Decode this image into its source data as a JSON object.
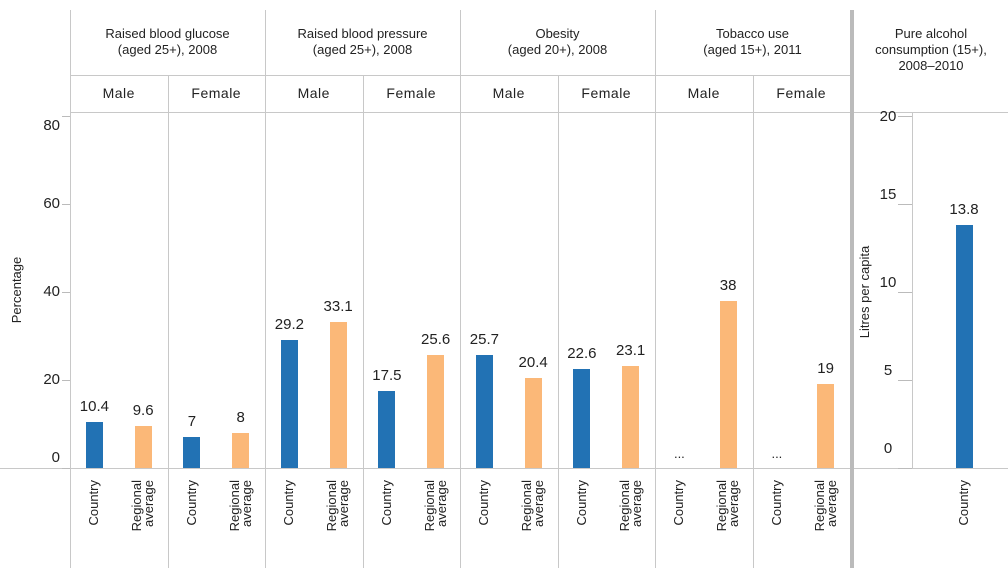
{
  "chart_data": [
    {
      "type": "grouped-bar",
      "ylabel": "Percentage",
      "ylim": [
        0,
        80
      ],
      "yticks": [
        0,
        20,
        40,
        60,
        80
      ],
      "categories": [
        "Country",
        "Regional average"
      ],
      "colors": [
        "#2272b4",
        "#fbb878"
      ],
      "groups": [
        {
          "title": [
            "Raised blood glucose",
            "(aged 25+), 2008"
          ],
          "panels": [
            {
              "name": "Male",
              "values": [
                10.4,
                9.6
              ]
            },
            {
              "name": "Female",
              "values": [
                7,
                8
              ]
            }
          ]
        },
        {
          "title": [
            "Raised blood pressure",
            "(aged 25+), 2008"
          ],
          "panels": [
            {
              "name": "Male",
              "values": [
                29.2,
                33.1
              ]
            },
            {
              "name": "Female",
              "values": [
                17.5,
                25.6
              ]
            }
          ]
        },
        {
          "title": [
            "Obesity",
            "(aged 20+), 2008"
          ],
          "panels": [
            {
              "name": "Male",
              "values": [
                25.7,
                20.4
              ]
            },
            {
              "name": "Female",
              "values": [
                22.6,
                23.1
              ]
            }
          ]
        },
        {
          "title": [
            "Tobacco use",
            "(aged 15+), 2011"
          ],
          "panels": [
            {
              "name": "Male",
              "values": [
                null,
                38
              ],
              "value_labels": [
                "...",
                "38"
              ]
            },
            {
              "name": "Female",
              "values": [
                null,
                19
              ],
              "value_labels": [
                "...",
                "19"
              ]
            }
          ]
        }
      ]
    },
    {
      "type": "bar",
      "title": [
        "Pure alcohol",
        "consumption (15+),",
        "2008–2010"
      ],
      "ylabel": "Litres per capita",
      "ylim": [
        0,
        20
      ],
      "yticks": [
        0,
        5,
        10,
        15,
        20
      ],
      "categories": [
        "Country"
      ],
      "values": [
        13.8
      ],
      "color": "#2272b4"
    }
  ]
}
